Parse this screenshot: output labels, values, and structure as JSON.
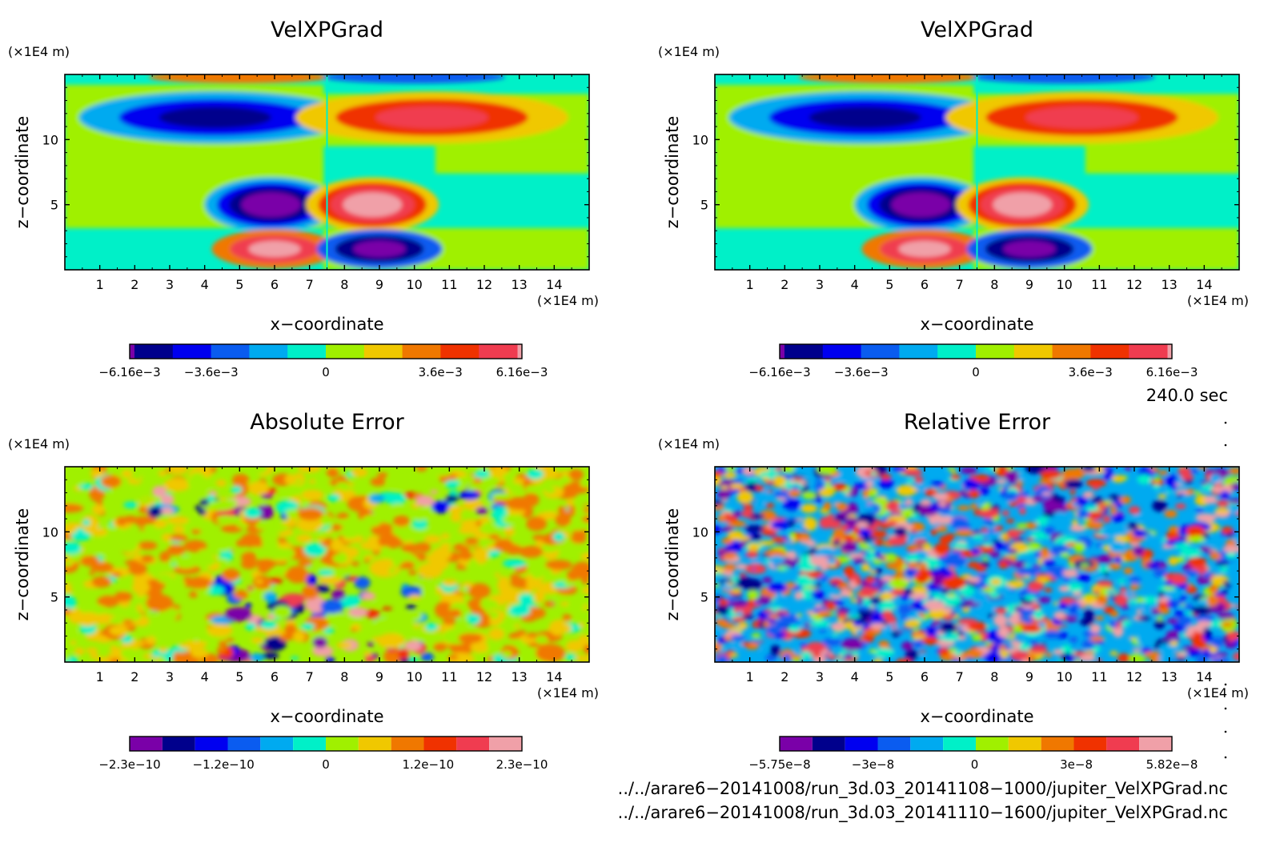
{
  "chart_data": [
    {
      "type": "heatmap",
      "title": "VelXPGrad",
      "xlabel": "x−coordinate",
      "ylabel": "z−coordinate",
      "x_unit": "(×1E4 m)",
      "y_unit": "(×1E4 m)",
      "xlim": [
        0,
        15
      ],
      "ylim": [
        0,
        15
      ],
      "x_ticks": [
        "1",
        "2",
        "3",
        "4",
        "5",
        "6",
        "7",
        "8",
        "9",
        "10",
        "11",
        "12",
        "13",
        "14"
      ],
      "y_ticks": [
        "5",
        "10"
      ],
      "field": "smooth",
      "colorbar_labels": [
        "−6.16e−3",
        "−3.6e−3",
        "0",
        "3.6e−3",
        "6.16e−3"
      ],
      "colorbar_range": [
        -0.00616,
        0.00616
      ]
    },
    {
      "type": "heatmap",
      "title": "VelXPGrad",
      "xlabel": "x−coordinate",
      "ylabel": "z−coordinate",
      "x_unit": "(×1E4 m)",
      "y_unit": "(×1E4 m)",
      "xlim": [
        0,
        15
      ],
      "ylim": [
        0,
        15
      ],
      "x_ticks": [
        "1",
        "2",
        "3",
        "4",
        "5",
        "6",
        "7",
        "8",
        "9",
        "10",
        "11",
        "12",
        "13",
        "14"
      ],
      "y_ticks": [
        "5",
        "10"
      ],
      "field": "smooth",
      "colorbar_labels": [
        "−6.16e−3",
        "−3.6e−3",
        "0",
        "3.6e−3",
        "6.16e−3"
      ],
      "colorbar_range": [
        -0.00616,
        0.00616
      ]
    },
    {
      "type": "heatmap",
      "title": "Absolute Error",
      "xlabel": "x−coordinate",
      "ylabel": "z−coordinate",
      "x_unit": "(×1E4 m)",
      "y_unit": "(×1E4 m)",
      "xlim": [
        0,
        15
      ],
      "ylim": [
        0,
        15
      ],
      "x_ticks": [
        "1",
        "2",
        "3",
        "4",
        "5",
        "6",
        "7",
        "8",
        "9",
        "10",
        "11",
        "12",
        "13",
        "14"
      ],
      "y_ticks": [
        "5",
        "10"
      ],
      "field": "noise-low",
      "colorbar_labels": [
        "−2.3e−10",
        "−1.2e−10",
        "0",
        "1.2e−10",
        "2.3e−10"
      ],
      "colorbar_range": [
        -2.3e-10,
        2.3e-10
      ]
    },
    {
      "type": "heatmap",
      "title": "Relative Error",
      "xlabel": "x−coordinate",
      "ylabel": "z−coordinate",
      "x_unit": "(×1E4 m)",
      "y_unit": "(×1E4 m)",
      "xlim": [
        0,
        15
      ],
      "ylim": [
        0,
        15
      ],
      "x_ticks": [
        "1",
        "2",
        "3",
        "4",
        "5",
        "6",
        "7",
        "8",
        "9",
        "10",
        "11",
        "12",
        "13",
        "14"
      ],
      "y_ticks": [
        "5",
        "10"
      ],
      "field": "noise-high",
      "colorbar_labels": [
        "−5.75e−8",
        "−3e−8",
        "0",
        "3e−8",
        "5.82e−8"
      ],
      "colorbar_range": [
        -5.75e-08,
        5.82e-08
      ]
    }
  ],
  "colormap": [
    "#7a00a8",
    "#00008c",
    "#0000f0",
    "#0a5cf0",
    "#00aaf0",
    "#00f0c8",
    "#a0f000",
    "#f0c800",
    "#f07800",
    "#f03200",
    "#f03c50",
    "#f0a0a8"
  ],
  "time_label": "240.0 sec",
  "footer": {
    "line1": "../../arare6−20141008/run_3d.03_20141108−1000/jupiter_VelXPGrad.nc",
    "line2": "../../arare6−20141008/run_3d.03_20141110−1600/jupiter_VelXPGrad.nc"
  }
}
